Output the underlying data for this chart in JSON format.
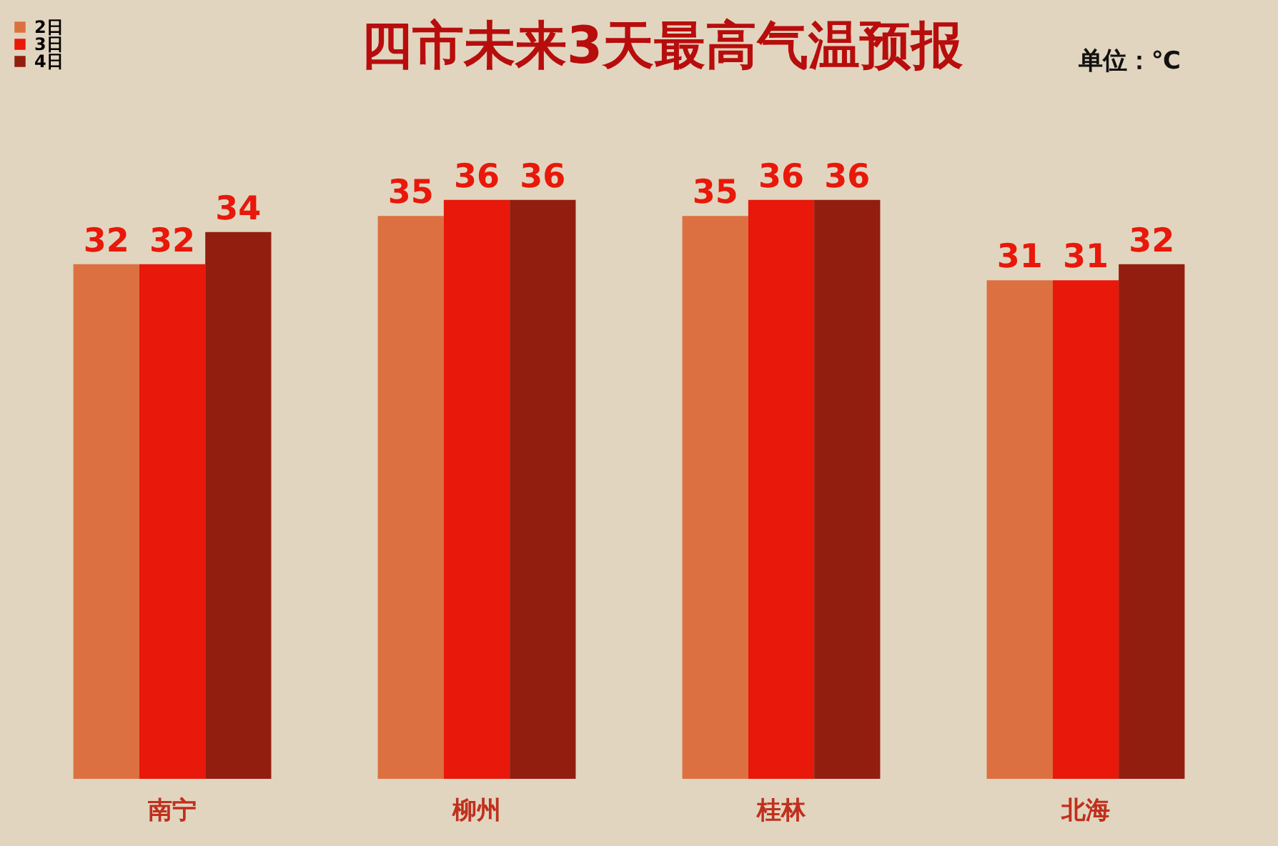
{
  "chart_data": {
    "type": "bar",
    "title": "四市未来3天最高气温预报",
    "categories": [
      "南宁",
      "柳州",
      "桂林",
      "北海"
    ],
    "series": [
      {
        "name": "2日",
        "color": "#dd7040",
        "values": [
          32,
          35,
          35,
          31
        ]
      },
      {
        "name": "3日",
        "color": "#e8180a",
        "values": [
          32,
          36,
          36,
          31
        ]
      },
      {
        "name": "4日",
        "color": "#921e10",
        "values": [
          34,
          36,
          36,
          32
        ]
      }
    ],
    "data_labels": true,
    "legend": "top left",
    "grid": false,
    "annotations": [
      "单位：℃"
    ]
  }
}
